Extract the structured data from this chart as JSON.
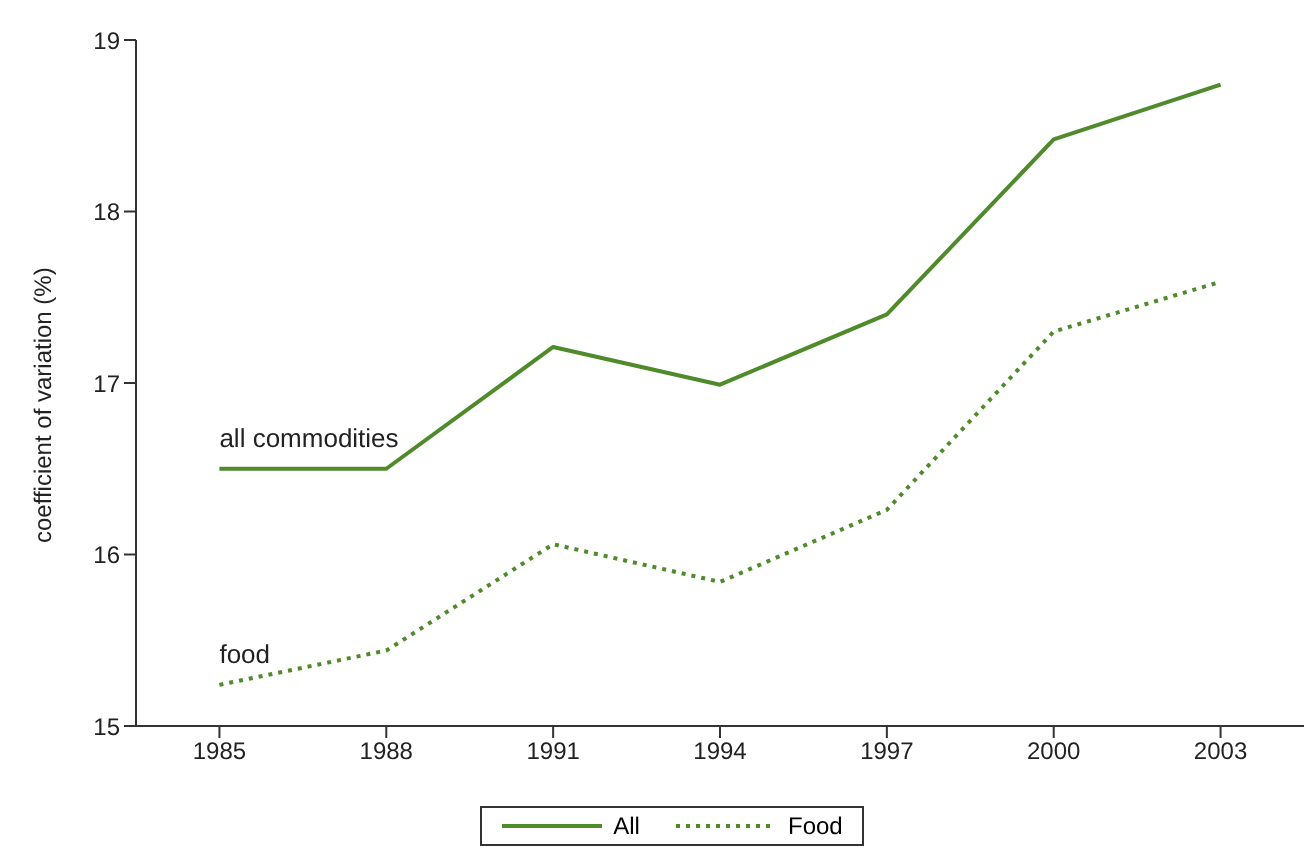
{
  "chart_data": {
    "type": "line",
    "ylabel": "coefficient of variation (%)",
    "categories": [
      "1985",
      "1988",
      "1991",
      "1994",
      "1997",
      "2000",
      "2003"
    ],
    "series": [
      {
        "name": "All",
        "color": "#4f8a2b",
        "values": [
          16.5,
          16.5,
          17.21,
          16.99,
          17.4,
          18.42,
          18.74
        ],
        "line_style": "solid"
      },
      {
        "name": "Food",
        "color": "#4f8a2b",
        "values": [
          15.24,
          15.44,
          16.06,
          15.84,
          16.26,
          17.3,
          17.59
        ],
        "line_style": "dotted"
      }
    ],
    "ylim": [
      15,
      19
    ],
    "yticks": [
      15,
      16,
      17,
      18,
      19
    ],
    "grid": false,
    "legend": "bottom",
    "marker": "none",
    "annotations": [
      "all commodities",
      "food"
    ]
  }
}
